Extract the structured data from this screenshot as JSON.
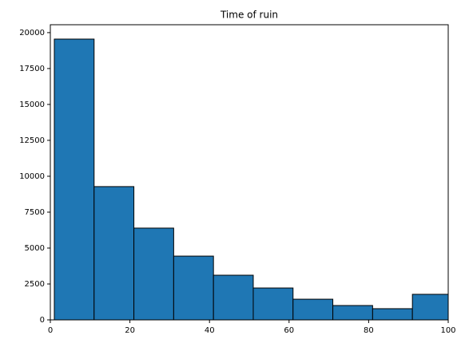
{
  "chart_data": {
    "type": "histogram",
    "title": "Time of ruin",
    "bins": [
      1,
      11,
      21,
      31,
      41,
      51,
      61,
      71,
      81,
      91,
      101
    ],
    "counts": [
      19550,
      9280,
      6390,
      4440,
      3110,
      2220,
      1440,
      1000,
      780,
      1780
    ],
    "color": "#1f77b4",
    "edgecolor": "#000000",
    "xlim": [
      0,
      100
    ],
    "xticks": [
      0,
      20,
      40,
      60,
      80,
      100
    ],
    "ylim": [
      0,
      20550
    ],
    "yticks": [
      0,
      2500,
      5000,
      7500,
      10000,
      12500,
      15000,
      17500,
      20000
    ]
  }
}
